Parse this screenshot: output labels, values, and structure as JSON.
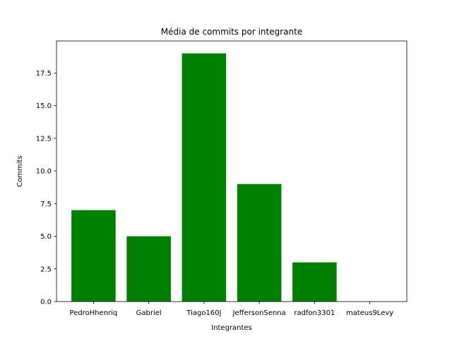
{
  "chart_data": {
    "type": "bar",
    "title": "Média de commits por integrante",
    "xlabel": "Integrantes",
    "ylabel": "Commits",
    "categories": [
      "PedroHhenriq",
      "Gabriel",
      "Tiago160J",
      "JeffersonSenna",
      "radfon3301",
      "mateus9Levy"
    ],
    "values": [
      7,
      5,
      19,
      9,
      3,
      0
    ],
    "ylim": [
      0,
      19.95
    ],
    "yticks": [
      0.0,
      2.5,
      5.0,
      7.5,
      10.0,
      12.5,
      15.0,
      17.5
    ],
    "ytick_labels": [
      "0.0",
      "2.5",
      "5.0",
      "7.5",
      "10.0",
      "12.5",
      "15.0",
      "17.5"
    ],
    "bar_color": "#008000",
    "grid": false,
    "legend": "none"
  }
}
